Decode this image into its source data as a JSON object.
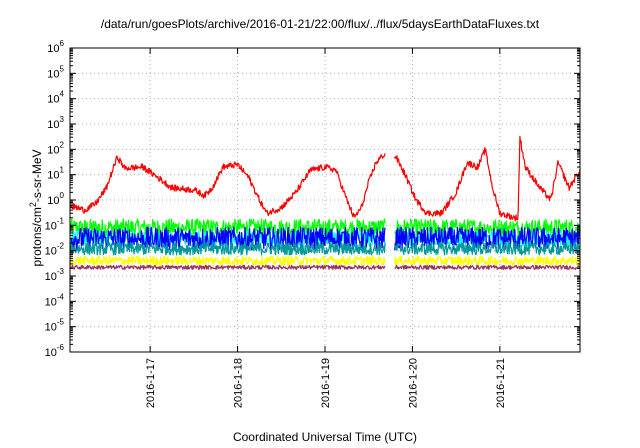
{
  "chart_data": {
    "type": "line",
    "title": "/data/run/goesPlots/archive/2016-01-21/22:00/flux/../flux/5daysEarthDataFluxes.txt",
    "xlabel": "Coordinated Universal Time (UTC)",
    "ylabel_prefix": "protons/cm",
    "ylabel_sup": "2",
    "ylabel_suffix": "-s-sr-MeV",
    "x_range": [
      "2016-01-16 02:00",
      "2016-01-21 22:00"
    ],
    "y_scale": "log",
    "ylim": [
      1e-06,
      1000000.0
    ],
    "grid": true,
    "legend": "none",
    "y_ticks": [
      {
        "value": 1e-06,
        "base": "10",
        "exp": "-6"
      },
      {
        "value": 1e-05,
        "base": "10",
        "exp": "-5"
      },
      {
        "value": 0.0001,
        "base": "10",
        "exp": "-4"
      },
      {
        "value": 0.001,
        "base": "10",
        "exp": "-3"
      },
      {
        "value": 0.01,
        "base": "10",
        "exp": "-2"
      },
      {
        "value": 0.1,
        "base": "10",
        "exp": "-1"
      },
      {
        "value": 1,
        "base": "10",
        "exp": "0"
      },
      {
        "value": 10.0,
        "base": "10",
        "exp": "1"
      },
      {
        "value": 100.0,
        "base": "10",
        "exp": "2"
      },
      {
        "value": 1000.0,
        "base": "10",
        "exp": "3"
      },
      {
        "value": 10000.0,
        "base": "10",
        "exp": "4"
      },
      {
        "value": 100000.0,
        "base": "10",
        "exp": "5"
      },
      {
        "value": 1000000.0,
        "base": "10",
        "exp": "6"
      }
    ],
    "x_ticks": [
      {
        "value": "2016-01-17",
        "label": "2016-1-17"
      },
      {
        "value": "2016-01-18",
        "label": "2016-1-18"
      },
      {
        "value": "2016-01-19",
        "label": "2016-1-19"
      },
      {
        "value": "2016-01-20",
        "label": "2016-1-20"
      },
      {
        "value": "2016-01-21",
        "label": "2016-1-21"
      }
    ],
    "data_gaps": [
      [
        "2016-01-19 16:30",
        "2016-01-19 19:00"
      ]
    ],
    "series": [
      {
        "color": "#ff0000",
        "style": "spiky",
        "points": [
          [
            "2016-01-16 02:00",
            0.6
          ],
          [
            "2016-01-16 06:00",
            0.4
          ],
          [
            "2016-01-16 09:00",
            0.7
          ],
          [
            "2016-01-16 12:00",
            3
          ],
          [
            "2016-01-16 14:00",
            20
          ],
          [
            "2016-01-16 15:00",
            50
          ],
          [
            "2016-01-16 17:00",
            18
          ],
          [
            "2016-01-16 22:00",
            20
          ],
          [
            "2016-01-17 02:00",
            8
          ],
          [
            "2016-01-17 06:00",
            3
          ],
          [
            "2016-01-17 12:00",
            2.5
          ],
          [
            "2016-01-17 15:00",
            1.5
          ],
          [
            "2016-01-17 17:00",
            3
          ],
          [
            "2016-01-17 20:00",
            20
          ],
          [
            "2016-01-18 00:00",
            25
          ],
          [
            "2016-01-18 03:00",
            8
          ],
          [
            "2016-01-18 06:00",
            1
          ],
          [
            "2016-01-18 08:00",
            0.3
          ],
          [
            "2016-01-18 12:00",
            0.5
          ],
          [
            "2016-01-18 16:00",
            2
          ],
          [
            "2016-01-18 20:00",
            15
          ],
          [
            "2016-01-19 00:00",
            20
          ],
          [
            "2016-01-19 03:00",
            15
          ],
          [
            "2016-01-19 06:00",
            1
          ],
          [
            "2016-01-19 08:00",
            0.2
          ],
          [
            "2016-01-19 10:00",
            0.5
          ],
          [
            "2016-01-19 12:00",
            5
          ],
          [
            "2016-01-19 14:00",
            30
          ],
          [
            "2016-01-19 16:00",
            60
          ],
          [
            "2016-01-19 19:30",
            50
          ],
          [
            "2016-01-19 22:00",
            10
          ],
          [
            "2016-01-20 01:00",
            1
          ],
          [
            "2016-01-20 04:00",
            0.3
          ],
          [
            "2016-01-20 08:00",
            0.3
          ],
          [
            "2016-01-20 12:00",
            2
          ],
          [
            "2016-01-20 15:00",
            30
          ],
          [
            "2016-01-20 18:00",
            20
          ],
          [
            "2016-01-20 20:00",
            100
          ],
          [
            "2016-01-20 22:00",
            3
          ],
          [
            "2016-01-21 00:00",
            0.3
          ],
          [
            "2016-01-21 04:00",
            0.2
          ],
          [
            "2016-01-21 05:00",
            0.2
          ],
          [
            "2016-01-21 05:30",
            300
          ],
          [
            "2016-01-21 07:00",
            20
          ],
          [
            "2016-01-21 11:00",
            3
          ],
          [
            "2016-01-21 14:00",
            1
          ],
          [
            "2016-01-21 16:00",
            30
          ],
          [
            "2016-01-21 19:00",
            3
          ],
          [
            "2016-01-21 22:00",
            15
          ]
        ]
      },
      {
        "color": "#00ff00",
        "style": "noise",
        "level": 0.08,
        "spread": 0.35
      },
      {
        "color": "#00ffff",
        "style": "noise",
        "level": 0.03,
        "spread": 0.3
      },
      {
        "color": "#0000ff",
        "style": "noise",
        "level": 0.03,
        "spread": 0.45
      },
      {
        "color": "#009999",
        "style": "noise",
        "level": 0.012,
        "spread": 0.25
      },
      {
        "color": "#ffff00",
        "style": "noise",
        "level": 0.004,
        "spread": 0.18
      },
      {
        "color": "#993366",
        "style": "noise",
        "level": 0.0022,
        "spread": 0.08
      }
    ]
  }
}
